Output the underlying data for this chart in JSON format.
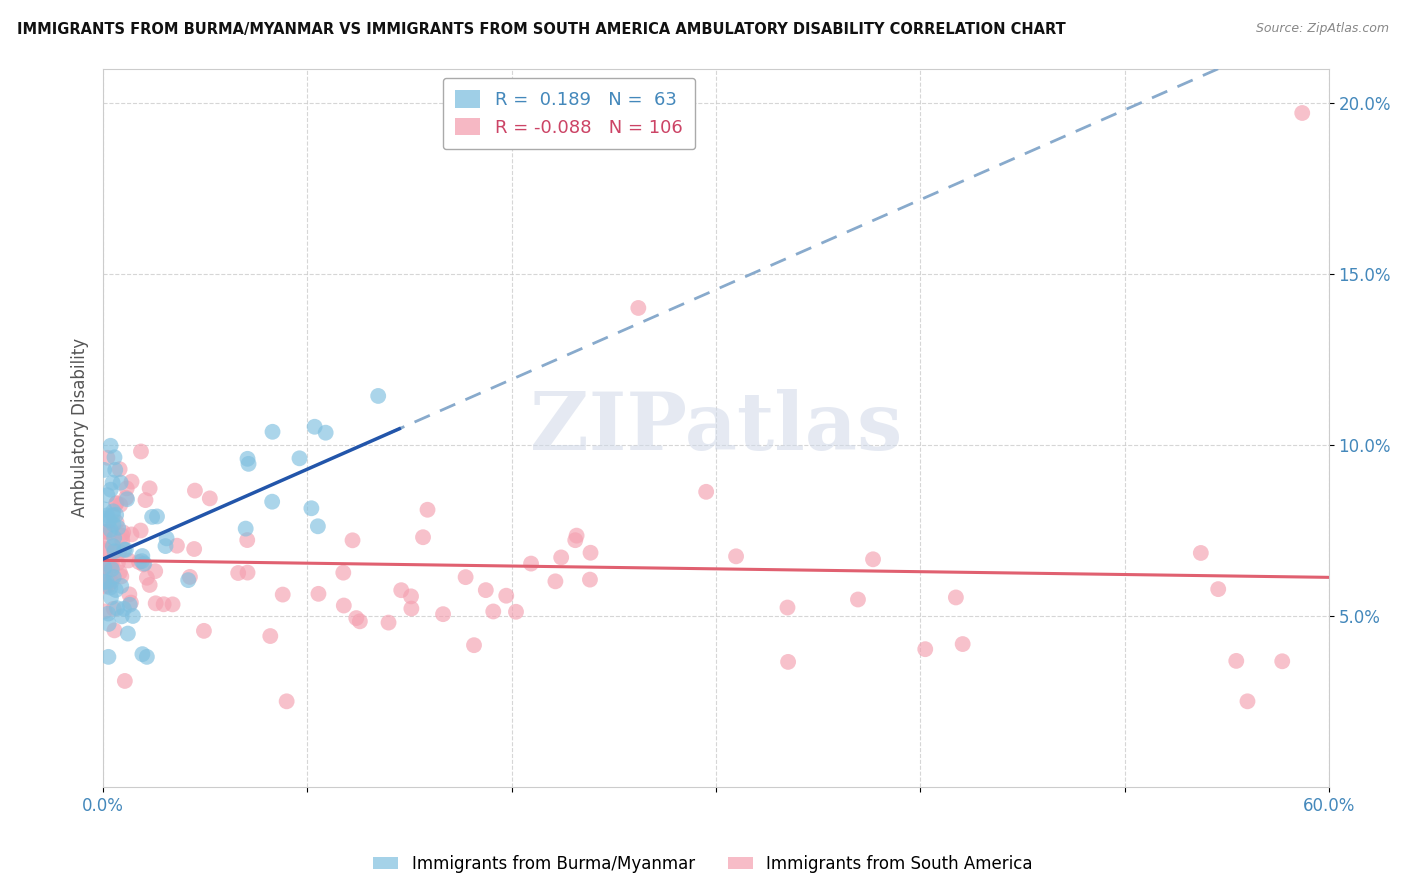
{
  "title": "IMMIGRANTS FROM BURMA/MYANMAR VS IMMIGRANTS FROM SOUTH AMERICA AMBULATORY DISABILITY CORRELATION CHART",
  "source": "Source: ZipAtlas.com",
  "ylabel": "Ambulatory Disability",
  "series": [
    {
      "label": "Immigrants from Burma/Myanmar",
      "color": "#7fbfdf",
      "R": 0.189,
      "N": 63,
      "line_color_solid": "#2255aa",
      "line_color_dashed": "#88aacc"
    },
    {
      "label": "Immigrants from South America",
      "color": "#f4a0b0",
      "R": -0.088,
      "N": 106,
      "line_color": "#e06070"
    }
  ],
  "xlim": [
    0.0,
    0.6
  ],
  "ylim": [
    0.0,
    0.21
  ],
  "yticks": [
    0.05,
    0.1,
    0.15,
    0.2
  ],
  "ytick_labels": [
    "5.0%",
    "10.0%",
    "15.0%",
    "20.0%"
  ],
  "watermark": "ZIPatlas",
  "background_color": "#ffffff"
}
